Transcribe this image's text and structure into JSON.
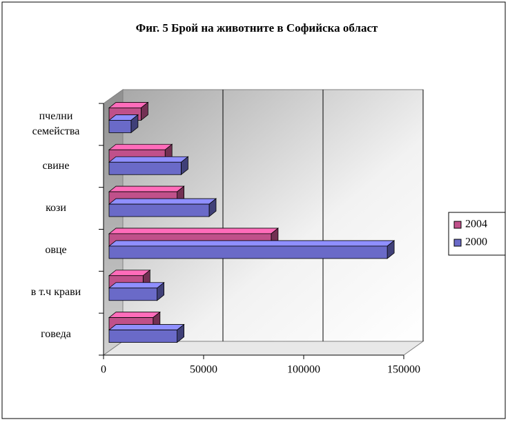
{
  "chart_data": {
    "type": "bar3d_horizontal",
    "title": "Фиг. 5 Брой на животните в Софийска област",
    "categories": [
      "говеда",
      "в т.ч крави",
      "овце",
      "кози",
      "свине",
      "пчелни семейства"
    ],
    "series": [
      {
        "name": "2004",
        "color": "#c0508a",
        "values": [
          22000,
          17000,
          81000,
          34000,
          28000,
          16000
        ]
      },
      {
        "name": "2000",
        "color": "#6a6ac8",
        "values": [
          34000,
          24000,
          139000,
          50000,
          36000,
          11000
        ]
      }
    ],
    "xlim": [
      0,
      150000
    ],
    "xticks": [
      0,
      50000,
      100000,
      150000
    ],
    "grid": true,
    "legend": "right"
  }
}
